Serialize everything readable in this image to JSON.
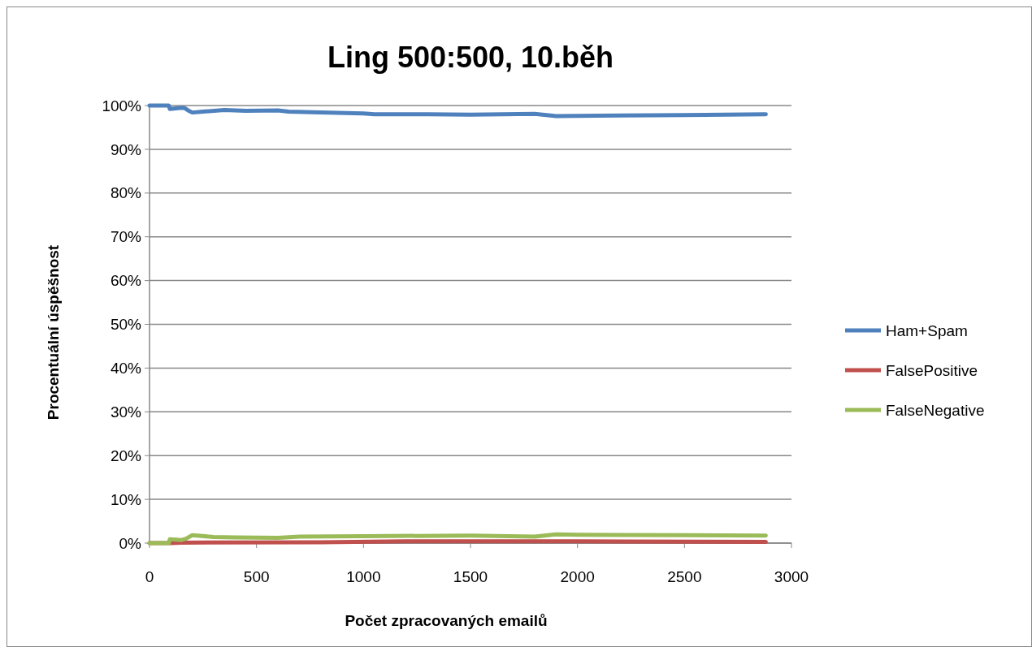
{
  "chart_data": {
    "type": "line",
    "title": "Ling 500:500, 10.běh",
    "xlabel": "Počet zpracovaných emailů",
    "ylabel": "Procentuální úspěšnost",
    "xlim": [
      0,
      3000
    ],
    "xticks": [
      0,
      500,
      1000,
      1500,
      2000,
      2500,
      3000
    ],
    "ylim": [
      0,
      100
    ],
    "yticks": [
      {
        "value": 0,
        "label": "0%"
      },
      {
        "value": 10,
        "label": "10%"
      },
      {
        "value": 20,
        "label": "20%"
      },
      {
        "value": 30,
        "label": "30%"
      },
      {
        "value": 40,
        "label": "40%"
      },
      {
        "value": 50,
        "label": "50%"
      },
      {
        "value": 60,
        "label": "60%"
      },
      {
        "value": 70,
        "label": "70%"
      },
      {
        "value": 80,
        "label": "80%"
      },
      {
        "value": 90,
        "label": "90%"
      },
      {
        "value": 100,
        "label": "100%"
      }
    ],
    "grid": "y",
    "legend": "right",
    "line_style": "solid",
    "marker": "none",
    "series": [
      {
        "name": "Ham+Spam",
        "color": "#4f81bd",
        "x": [
          0,
          90,
          95,
          150,
          165,
          180,
          200,
          250,
          350,
          450,
          600,
          650,
          800,
          1000,
          1050,
          1300,
          1500,
          1800,
          1900,
          2100,
          2500,
          2880
        ],
        "values": [
          100,
          100,
          99.2,
          99.5,
          99.4,
          98.9,
          98.4,
          98.6,
          99,
          98.8,
          98.9,
          98.6,
          98.4,
          98.2,
          98,
          98,
          97.9,
          98.1,
          97.6,
          97.7,
          97.8,
          98
        ]
      },
      {
        "name": "FalsePositive",
        "color": "#c0504d",
        "x": [
          0,
          100,
          150,
          800,
          1200,
          2000,
          2880
        ],
        "values": [
          0,
          0,
          0.1,
          0.2,
          0.4,
          0.4,
          0.3
        ]
      },
      {
        "name": "FalseNegative",
        "color": "#9bbb59",
        "x": [
          0,
          90,
          95,
          150,
          170,
          200,
          300,
          400,
          600,
          700,
          1000,
          1500,
          1800,
          1900,
          2000,
          2500,
          2880
        ],
        "values": [
          0,
          0,
          0.9,
          0.7,
          1,
          1.8,
          1.4,
          1.3,
          1.2,
          1.5,
          1.6,
          1.7,
          1.5,
          2,
          1.9,
          1.8,
          1.7
        ]
      }
    ]
  }
}
